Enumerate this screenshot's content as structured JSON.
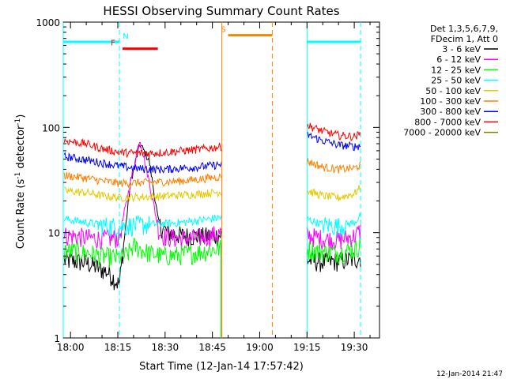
{
  "chart_data": {
    "type": "line",
    "title": "HESSI Observing Summary Count Rates",
    "xlabel": "Start Time (12-Jan-14 17:57:42)",
    "ylabel_main": "Count Rate (s",
    "ylabel_sup1": "-1",
    "ylabel_mid": " detector",
    "ylabel_sup2": "-1",
    "ylabel_end": ")",
    "y_log": true,
    "ylim": [
      1,
      1000
    ],
    "xlim_min": [
      -2.3,
      98
    ],
    "x_ticks": [
      {
        "t": 0,
        "label": "18:00"
      },
      {
        "t": 15,
        "label": "18:15"
      },
      {
        "t": 30,
        "label": "18:30"
      },
      {
        "t": 45,
        "label": "18:45"
      },
      {
        "t": 60,
        "label": "19:00"
      },
      {
        "t": 75,
        "label": "19:15"
      },
      {
        "t": 90,
        "label": "19:30"
      }
    ],
    "y_ticks": [
      {
        "v": 1,
        "label": "1"
      },
      {
        "v": 10,
        "label": "10"
      },
      {
        "v": 100,
        "label": "100"
      },
      {
        "v": 1000,
        "label": "1000"
      }
    ],
    "legend_header": [
      "Det 1,3,5,6,7,9,",
      "FDecim 1, Att 0"
    ],
    "legend_placement": "right",
    "series": [
      {
        "name": "3 - 6 keV",
        "color": "#000000",
        "segments": [
          {
            "x": [
              -2,
              5,
              12,
              15.5,
              19,
              22,
              25,
              28,
              30,
              33,
              36,
              40,
              45,
              48
            ],
            "y": [
              5.5,
              5.2,
              4.2,
              3.2,
              30,
              70,
              48,
              12,
              10.5,
              9.6,
              9.4,
              9.2,
              9.3,
              9.5
            ]
          },
          {
            "x": [
              75,
              80,
              85,
              90,
              92
            ],
            "y": [
              5.5,
              5.3,
              5.4,
              5.6,
              5.8
            ]
          }
        ]
      },
      {
        "name": "6 - 12 keV",
        "color": "#ff00ff",
        "segments": [
          {
            "x": [
              -2,
              5,
              10,
              15.5,
              19,
              22,
              25,
              28,
              30,
              35,
              40,
              45,
              48
            ],
            "y": [
              9.5,
              9.0,
              8.8,
              9.0,
              30,
              78,
              30,
              10.5,
              9.2,
              8.8,
              9.0,
              9.5,
              10.0
            ]
          },
          {
            "x": [
              75,
              80,
              85,
              90,
              92
            ],
            "y": [
              9.5,
              8.8,
              8.5,
              9.3,
              10.5
            ]
          }
        ]
      },
      {
        "name": "12 - 25 keV",
        "color": "#00ff00",
        "segments": [
          {
            "x": [
              -2,
              5,
              10,
              15.5,
              18,
              20,
              25,
              30,
              35,
              40,
              45,
              48
            ],
            "y": [
              6.8,
              6.5,
              6.0,
              5.8,
              6.2,
              7.5,
              6.4,
              6.0,
              6.2,
              6.5,
              6.9,
              7.2
            ]
          },
          {
            "x": [
              75,
              80,
              85,
              90,
              92
            ],
            "y": [
              7.0,
              6.6,
              6.5,
              7.0,
              7.6
            ]
          }
        ]
      },
      {
        "name": "25 - 50 keV",
        "color": "#00ffff",
        "segments": [
          {
            "x": [
              -2,
              5,
              10,
              15.5,
              20,
              25,
              30,
              35,
              40,
              45,
              48
            ],
            "y": [
              13.5,
              12.5,
              11.8,
              11.5,
              11.8,
              12.0,
              12.2,
              12.5,
              13.0,
              13.6,
              14.0
            ]
          },
          {
            "x": [
              75,
              80,
              85,
              90,
              92
            ],
            "y": [
              13.5,
              12.0,
              11.6,
              12.5,
              14.5
            ]
          }
        ]
      },
      {
        "name": "50 - 100 keV",
        "color": "#e6c800",
        "segments": [
          {
            "x": [
              -2,
              5,
              10,
              15.5,
              20,
              25,
              30,
              35,
              40,
              45,
              48
            ],
            "y": [
              25,
              24,
              22.5,
              21.5,
              21.8,
              22,
              22.3,
              22.8,
              23.3,
              24,
              24.5
            ]
          },
          {
            "x": [
              75,
              80,
              85,
              90,
              92
            ],
            "y": [
              25,
              22.5,
              21.5,
              23.5,
              27
            ]
          }
        ]
      },
      {
        "name": "100 - 300 keV",
        "color": "#ff8000",
        "segments": [
          {
            "x": [
              -2,
              5,
              10,
              15.5,
              20,
              25,
              30,
              35,
              40,
              45,
              48
            ],
            "y": [
              35,
              33,
              31,
              29.5,
              29.8,
              30,
              30.5,
              31,
              32,
              33.5,
              34
            ]
          },
          {
            "x": [
              75,
              80,
              85,
              90,
              92
            ],
            "y": [
              48,
              42,
              40,
              41,
              44
            ]
          }
        ]
      },
      {
        "name": "300 - 800 keV",
        "color": "#0000ff",
        "segments": [
          {
            "x": [
              -2,
              5,
              10,
              15.5,
              20,
              25,
              30,
              35,
              40,
              45,
              48
            ],
            "y": [
              53,
              49,
              46,
              43,
              41,
              40,
              40,
              41,
              42,
              43.5,
              44.5
            ]
          },
          {
            "x": [
              75,
              80,
              85,
              90,
              92
            ],
            "y": [
              85,
              75,
              68,
              66,
              67
            ]
          }
        ]
      },
      {
        "name": "800 - 7000 keV",
        "color": "#ff0000",
        "segments": [
          {
            "x": [
              -2,
              5,
              10,
              15.5,
              20,
              25,
              30,
              35,
              40,
              45,
              48
            ],
            "y": [
              75,
              70,
              63,
              58,
              57,
              57,
              58,
              60,
              61.5,
              64,
              66
            ]
          },
          {
            "x": [
              75,
              80,
              85,
              90,
              92
            ],
            "y": [
              105,
              92,
              84,
              82,
              86
            ]
          }
        ]
      },
      {
        "name": "7000 - 20000 keV",
        "color": "#808000",
        "segments": []
      }
    ],
    "annotations": [
      {
        "label": "N",
        "color": "#00ffff",
        "x_start": -2.3,
        "x_end": 15.5,
        "y": 650,
        "label_x": 17.5
      },
      {
        "label": "F",
        "color": "#ff0000",
        "x_start": 16.5,
        "x_end": 27.7,
        "y": 560,
        "label_x": 13.5
      },
      {
        "label": "S",
        "color": "#ff8000",
        "x_start": 50,
        "x_end": 64,
        "y": 750,
        "label_x": 48.5
      },
      {
        "label": "",
        "color": "#00ffff",
        "x_start": 75,
        "x_end": 92,
        "y": 650,
        "label_x": null
      }
    ],
    "vlines": [
      {
        "t": 15.5,
        "color": "#00ffff",
        "dashed": true
      },
      {
        "t": 48,
        "color": "#ff8000",
        "dashed": false
      },
      {
        "t": 64,
        "color": "#ff8000",
        "dashed": true
      },
      {
        "t": 75,
        "color": "#00ffff",
        "dashed": false
      },
      {
        "t": 92,
        "color": "#00ffff",
        "dashed": true
      },
      {
        "t": -2.3,
        "color": "#00ffff",
        "dashed": false
      }
    ],
    "footer_date": "12-Jan-2014 21:47"
  }
}
